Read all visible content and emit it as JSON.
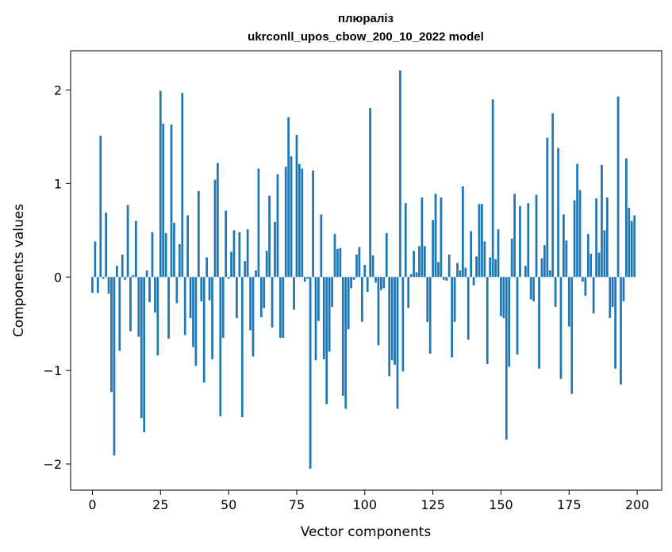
{
  "chart_data": {
    "type": "bar",
    "title": "плюраліз",
    "subtitle": "ukrconll_upos_cbow_200_10_2022 model",
    "xlabel": "Vector components",
    "ylabel": "Components values",
    "xlim": [
      -8,
      209
    ],
    "ylim": [
      -2.28,
      2.42
    ],
    "xticks": [
      0,
      25,
      50,
      75,
      100,
      125,
      150,
      175,
      200
    ],
    "yticks": [
      -2,
      -1,
      0,
      1,
      2
    ],
    "ytick_labels": [
      "−2",
      "−1",
      "0",
      "1",
      "2"
    ],
    "grid": false,
    "bar_color": "#1f77b4",
    "x": [
      0,
      1,
      2,
      3,
      4,
      5,
      6,
      7,
      8,
      9,
      10,
      11,
      12,
      13,
      14,
      15,
      16,
      17,
      18,
      19,
      20,
      21,
      22,
      23,
      24,
      25,
      26,
      27,
      28,
      29,
      30,
      31,
      32,
      33,
      34,
      35,
      36,
      37,
      38,
      39,
      40,
      41,
      42,
      43,
      44,
      45,
      46,
      47,
      48,
      49,
      50,
      51,
      52,
      53,
      54,
      55,
      56,
      57,
      58,
      59,
      60,
      61,
      62,
      63,
      64,
      65,
      66,
      67,
      68,
      69,
      70,
      71,
      72,
      73,
      74,
      75,
      76,
      77,
      78,
      79,
      80,
      81,
      82,
      83,
      84,
      85,
      86,
      87,
      88,
      89,
      90,
      91,
      92,
      93,
      94,
      95,
      96,
      97,
      98,
      99,
      100,
      101,
      102,
      103,
      104,
      105,
      106,
      107,
      108,
      109,
      110,
      111,
      112,
      113,
      114,
      115,
      116,
      117,
      118,
      119,
      120,
      121,
      122,
      123,
      124,
      125,
      126,
      127,
      128,
      129,
      130,
      131,
      132,
      133,
      134,
      135,
      136,
      137,
      138,
      139,
      140,
      141,
      142,
      143,
      144,
      145,
      146,
      147,
      148,
      149,
      150,
      151,
      152,
      153,
      154,
      155,
      156,
      157,
      158,
      159,
      160,
      161,
      162,
      163,
      164,
      165,
      166,
      167,
      168,
      169,
      170,
      171,
      172,
      173,
      174,
      175,
      176,
      177,
      178,
      179,
      180,
      181,
      182,
      183,
      184,
      185,
      186,
      187,
      188,
      189,
      190,
      191,
      192,
      193,
      194,
      195,
      196,
      197,
      198,
      199
    ],
    "values": [
      -0.17,
      0.38,
      -0.17,
      1.51,
      -0.02,
      0.69,
      -0.18,
      -1.23,
      -1.91,
      0.12,
      -0.79,
      0.24,
      -0.03,
      0.77,
      -0.58,
      0.02,
      0.6,
      -0.64,
      -1.51,
      -1.66,
      0.07,
      -0.27,
      0.48,
      -0.38,
      -0.84,
      1.99,
      1.64,
      0.47,
      -0.66,
      1.63,
      0.58,
      -0.28,
      0.35,
      1.97,
      -0.62,
      0.66,
      -0.44,
      -0.75,
      -0.95,
      0.92,
      -0.26,
      -1.13,
      0.21,
      -0.25,
      -0.88,
      1.04,
      1.22,
      -1.49,
      -0.65,
      0.71,
      -0.02,
      0.27,
      0.5,
      -0.44,
      0.48,
      -1.5,
      0.17,
      0.51,
      -0.57,
      -0.85,
      0.07,
      1.16,
      -0.43,
      -0.33,
      0.28,
      0.87,
      -0.54,
      0.59,
      1.1,
      -0.65,
      -0.65,
      1.18,
      1.71,
      1.29,
      -0.35,
      1.52,
      1.21,
      1.16,
      -0.05,
      -0.02,
      -2.05,
      1.14,
      -0.89,
      -0.47,
      0.67,
      -0.88,
      -1.36,
      -0.8,
      -0.32,
      0.46,
      0.3,
      0.31,
      -1.27,
      -1.41,
      -0.56,
      -0.12,
      -0.03,
      0.24,
      0.32,
      -0.48,
      0.13,
      -0.16,
      1.81,
      0.23,
      -0.06,
      -0.73,
      -0.14,
      -0.12,
      0.47,
      -1.06,
      -0.89,
      -0.94,
      -1.41,
      2.21,
      -1.01,
      0.79,
      -0.33,
      0.03,
      0.28,
      0.05,
      0.33,
      0.85,
      0.33,
      -0.48,
      -0.82,
      0.61,
      0.89,
      0.16,
      0.85,
      -0.03,
      -0.04,
      0.24,
      -0.86,
      -0.48,
      0.15,
      0.07,
      0.97,
      0.1,
      -0.67,
      0.49,
      -0.09,
      0.22,
      0.78,
      0.78,
      0.38,
      -0.93,
      0.21,
      1.9,
      0.19,
      0.51,
      -0.42,
      -0.44,
      -1.74,
      -0.96,
      0.41,
      0.89,
      -0.83,
      0.76,
      0.0,
      0.12,
      0.79,
      -0.24,
      -0.26,
      0.88,
      -0.98,
      0.2,
      0.34,
      1.49,
      0.07,
      1.75,
      -0.32,
      1.38,
      -1.09,
      0.67,
      0.39,
      -0.53,
      -1.25,
      0.82,
      1.21,
      0.93,
      -0.05,
      -0.2,
      0.46,
      0.25,
      -0.39,
      0.84,
      0.26,
      1.2,
      0.5,
      0.85,
      -0.44,
      -0.32,
      -0.98,
      1.93,
      -1.15,
      -0.26,
      1.27,
      0.74,
      0.6,
      0.66
    ]
  }
}
